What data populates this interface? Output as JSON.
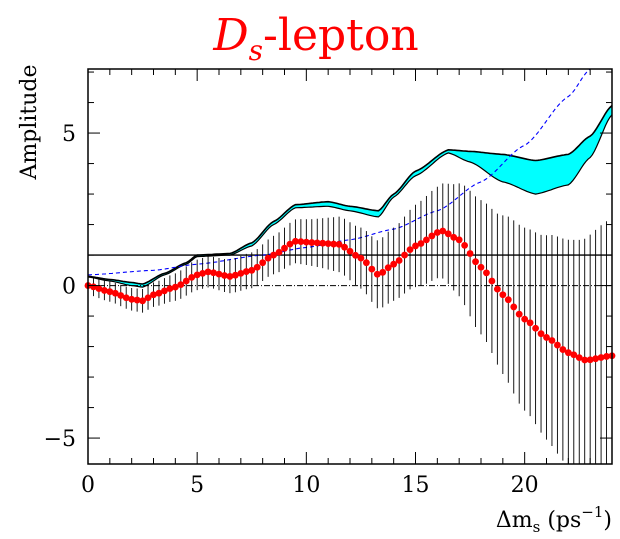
{
  "chart_data": {
    "type": "scatter",
    "title": {
      "main": "D",
      "subscript": "s",
      "rest": "-lepton"
    },
    "xlabel": "Δm_s (ps⁻¹)",
    "xlabel_parts": {
      "delta": "Δm",
      "sub": "s",
      "unit": " (ps",
      "sup": "−1",
      "close": ")"
    },
    "ylabel": "Amplitude",
    "xlim": [
      0,
      24
    ],
    "ylim": [
      -5.85,
      7.1
    ],
    "x_ticks": [
      0,
      5,
      10,
      15,
      20
    ],
    "x_tick_labels": [
      "0",
      "5",
      "10",
      "15",
      "20"
    ],
    "y_ticks": [
      -5,
      0,
      5
    ],
    "y_tick_labels": [
      "−5",
      "0",
      "5"
    ],
    "reference_lines": [
      {
        "y": 1,
        "style": "solid"
      },
      {
        "y": 0,
        "style": "dash-dot"
      }
    ],
    "amplitude_knots": [
      [
        0,
        0.0
      ],
      [
        1,
        -0.2
      ],
      [
        2,
        -0.45
      ],
      [
        2.5,
        -0.5
      ],
      [
        3,
        -0.3
      ],
      [
        4,
        -0.05
      ],
      [
        5,
        0.35
      ],
      [
        5.5,
        0.45
      ],
      [
        6.5,
        0.3
      ],
      [
        7.5,
        0.5
      ],
      [
        8.5,
        1.0
      ],
      [
        9.5,
        1.45
      ],
      [
        10.5,
        1.4
      ],
      [
        11.5,
        1.35
      ],
      [
        12.5,
        0.9
      ],
      [
        13.3,
        0.35
      ],
      [
        14,
        0.7
      ],
      [
        15,
        1.3
      ],
      [
        16.2,
        1.8
      ],
      [
        17,
        1.5
      ],
      [
        18,
        0.6
      ],
      [
        19,
        -0.3
      ],
      [
        20,
        -1.1
      ],
      [
        21,
        -1.7
      ],
      [
        22,
        -2.2
      ],
      [
        22.8,
        -2.45
      ],
      [
        24,
        -2.3
      ]
    ],
    "error_knots": [
      [
        0,
        0.3
      ],
      [
        3,
        0.4
      ],
      [
        5,
        0.5
      ],
      [
        8,
        0.6
      ],
      [
        10,
        0.75
      ],
      [
        12,
        0.95
      ],
      [
        14,
        1.2
      ],
      [
        16,
        1.5
      ],
      [
        18,
        2.2
      ],
      [
        20,
        3.0
      ],
      [
        22,
        3.7
      ],
      [
        24,
        4.5
      ]
    ],
    "sensitivity_knots": [
      [
        0,
        0.35
      ],
      [
        3,
        0.5
      ],
      [
        5,
        0.7
      ],
      [
        8,
        1.0
      ],
      [
        10,
        1.25
      ],
      [
        12,
        1.5
      ],
      [
        14,
        1.85
      ],
      [
        16,
        2.45
      ],
      [
        18,
        3.4
      ],
      [
        20,
        4.6
      ],
      [
        22,
        6.2
      ],
      [
        23,
        7.1
      ]
    ],
    "band_upper_knots": [
      [
        0,
        0.3
      ],
      [
        1,
        0.2
      ],
      [
        2,
        0.1
      ],
      [
        2.5,
        0.05
      ],
      [
        3.5,
        0.4
      ],
      [
        4.5,
        0.75
      ],
      [
        5,
        1.0
      ],
      [
        6.5,
        1.05
      ],
      [
        7.5,
        1.4
      ],
      [
        8.5,
        2.1
      ],
      [
        9.5,
        2.65
      ],
      [
        11,
        2.75
      ],
      [
        12,
        2.6
      ],
      [
        13.3,
        2.45
      ],
      [
        14,
        3.0
      ],
      [
        15,
        3.75
      ],
      [
        16.5,
        4.45
      ],
      [
        17.5,
        4.4
      ],
      [
        19,
        4.3
      ],
      [
        20.5,
        4.1
      ],
      [
        22,
        4.3
      ],
      [
        23,
        4.9
      ],
      [
        24,
        5.9
      ]
    ],
    "band_lower_knots": [
      [
        0,
        0.28
      ],
      [
        1,
        0.15
      ],
      [
        2,
        0.0
      ],
      [
        2.5,
        -0.05
      ],
      [
        3.5,
        0.35
      ],
      [
        4.5,
        0.7
      ],
      [
        5,
        0.95
      ],
      [
        6.5,
        1.0
      ],
      [
        7.5,
        1.3
      ],
      [
        8.5,
        2.0
      ],
      [
        9.5,
        2.55
      ],
      [
        11,
        2.6
      ],
      [
        12,
        2.45
      ],
      [
        13.3,
        2.25
      ],
      [
        14,
        2.9
      ],
      [
        15,
        3.6
      ],
      [
        16.5,
        4.35
      ],
      [
        17.5,
        4.05
      ],
      [
        19,
        3.4
      ],
      [
        20.5,
        3.0
      ],
      [
        22,
        3.3
      ],
      [
        23,
        4.2
      ],
      [
        24,
        5.6
      ]
    ],
    "colors": {
      "points": "#ff0000",
      "errorbars": "#000000",
      "band_fill": "#00ffff",
      "band_edge": "#000000",
      "sensitivity": "#0000ff",
      "title": "#ff0000"
    },
    "grid": false
  }
}
